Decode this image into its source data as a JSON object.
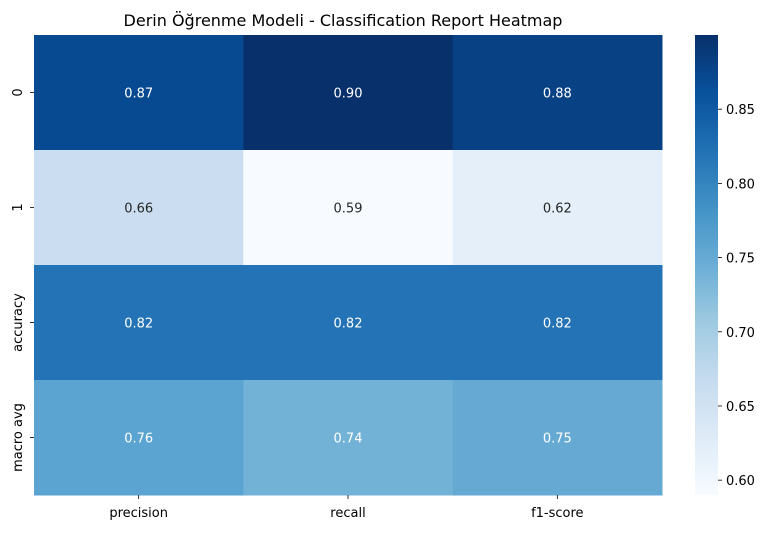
{
  "chart_data": {
    "type": "heatmap",
    "title": "Derin Öğrenme Modeli - Classification Report Heatmap",
    "x_categories": [
      "precision",
      "recall",
      "f1-score"
    ],
    "y_categories": [
      "0",
      "1",
      "accuracy",
      "macro avg"
    ],
    "values": [
      [
        0.87,
        0.9,
        0.88
      ],
      [
        0.66,
        0.59,
        0.62
      ],
      [
        0.82,
        0.82,
        0.82
      ],
      [
        0.76,
        0.74,
        0.75
      ]
    ],
    "value_labels": [
      [
        "0.87",
        "0.90",
        "0.88"
      ],
      [
        "0.66",
        "0.59",
        "0.62"
      ],
      [
        "0.82",
        "0.82",
        "0.82"
      ],
      [
        "0.76",
        "0.74",
        "0.75"
      ]
    ],
    "colormap": "Blues",
    "colorbar": {
      "range": [
        0.59,
        0.9
      ],
      "ticks": [
        0.6,
        0.65,
        0.7,
        0.75,
        0.8,
        0.85
      ],
      "tick_labels": [
        "0.60",
        "0.65",
        "0.70",
        "0.75",
        "0.80",
        "0.85"
      ]
    },
    "annot_text_colors": {
      "dark_cell": "#ffffff",
      "light_cell": "#262626"
    }
  }
}
